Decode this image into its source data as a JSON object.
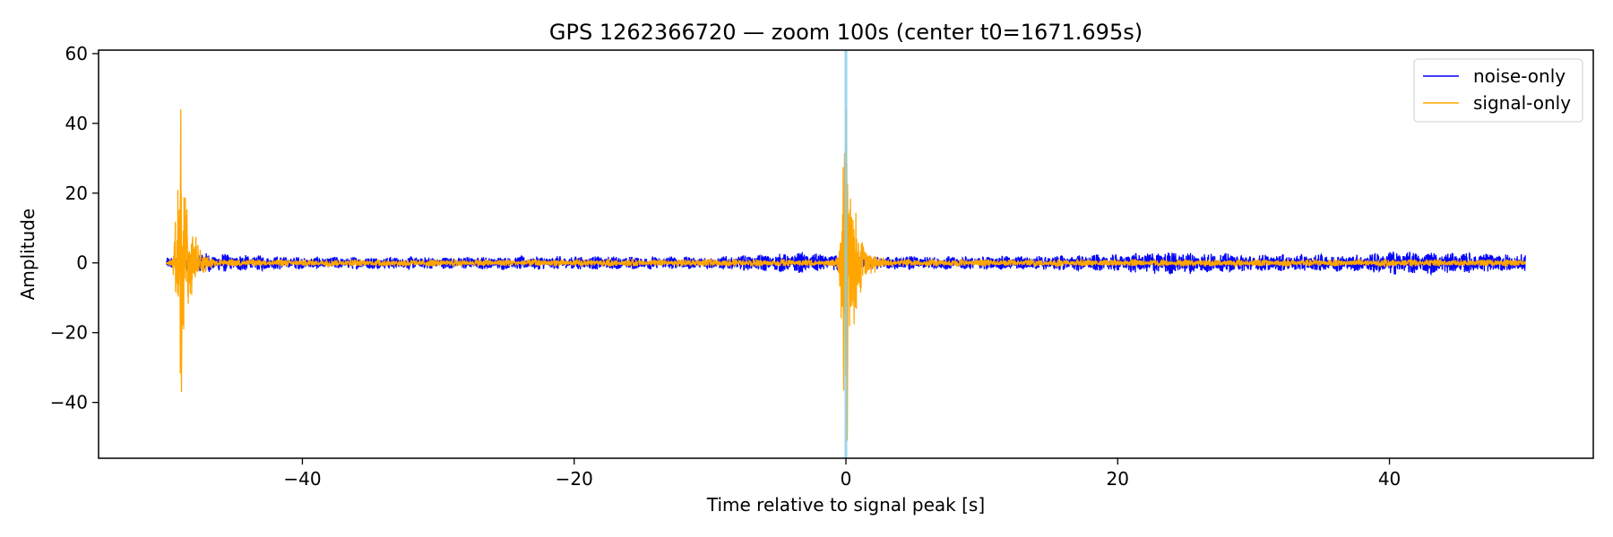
{
  "chart_data": {
    "type": "line",
    "title": "GPS 1262366720 — zoom 100s (center t0=1671.695s)",
    "xlabel": "Time relative to signal peak [s]",
    "ylabel": "Amplitude",
    "xlim": [
      -55,
      55
    ],
    "ylim": [
      -56,
      61
    ],
    "xticks": [
      -40,
      -20,
      0,
      20,
      40
    ],
    "xtick_labels": [
      "−40",
      "−20",
      "0",
      "20",
      "40"
    ],
    "yticks": [
      -40,
      -20,
      0,
      20,
      40,
      60
    ],
    "ytick_labels": [
      "−40",
      "−20",
      "0",
      "20",
      "40",
      "60"
    ],
    "grid": false,
    "legend_position": "top-right",
    "marker_line": {
      "x": 0,
      "color": "#87ceeb"
    },
    "series": [
      {
        "name": "noise-only",
        "color": "#0000ff",
        "x_range": [
          -50,
          50
        ],
        "envelope": [
          [
            -50,
            1.5
          ],
          [
            -47.5,
            3.0
          ],
          [
            -45,
            2.5
          ],
          [
            -40,
            1.8
          ],
          [
            -30,
            1.8
          ],
          [
            -20,
            2.0
          ],
          [
            -10,
            1.8
          ],
          [
            -3,
            3.0
          ],
          [
            0,
            2.0
          ],
          [
            5,
            2.0
          ],
          [
            10,
            2.0
          ],
          [
            15,
            2.2
          ],
          [
            20,
            2.5
          ],
          [
            23,
            3.5
          ],
          [
            30,
            2.5
          ],
          [
            38,
            2.5
          ],
          [
            40,
            3.5
          ],
          [
            45,
            3.0
          ],
          [
            50,
            2.5
          ]
        ]
      },
      {
        "name": "signal-only",
        "color": "#ffa500",
        "x_range": [
          -50,
          50
        ],
        "bursts": [
          {
            "t": -49.0,
            "peak_max": 44,
            "peak_min": -37
          },
          {
            "t": 0.0,
            "peak_max": 44,
            "peak_min": -51
          }
        ],
        "background_amplitude": 1.0
      }
    ]
  }
}
